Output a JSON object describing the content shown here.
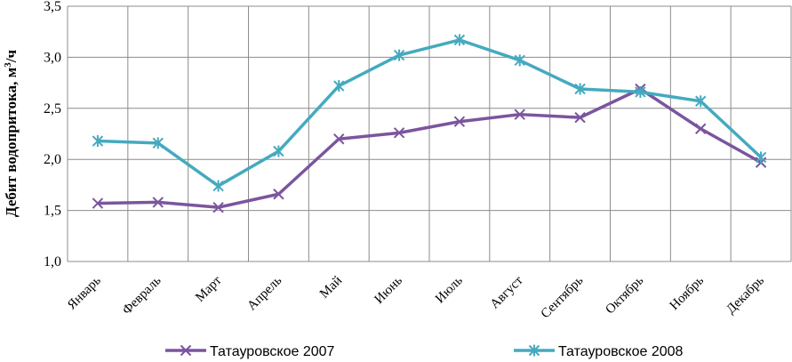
{
  "chart_data": {
    "type": "line",
    "ylabel_main": "Дебит водопритока, м",
    "ylabel_sup": "3",
    "ylabel_tail": "/ч",
    "ylim": [
      1.0,
      3.5
    ],
    "yticks": [
      "1,0",
      "1,5",
      "2,0",
      "2,5",
      "3,0",
      "3,5"
    ],
    "categories": [
      "Январь",
      "Февраль",
      "Март",
      "Апрель",
      "Май",
      "Июнь",
      "Июль",
      "Август",
      "Сентябрь",
      "Октябрь",
      "Ноябрь",
      "Декабрь"
    ],
    "grid": true,
    "legend_position": "bottom",
    "series": [
      {
        "name": "Татауровское 2007",
        "color": "#7B559E",
        "marker": "x",
        "values": [
          1.57,
          1.58,
          1.53,
          1.66,
          2.2,
          2.26,
          2.37,
          2.44,
          2.41,
          2.69,
          2.3,
          1.97
        ]
      },
      {
        "name": "Татауровское 2008",
        "color": "#44AABF",
        "marker": "asterisk",
        "values": [
          2.18,
          2.16,
          1.74,
          2.08,
          2.72,
          3.02,
          3.17,
          2.97,
          2.69,
          2.66,
          2.57,
          2.02
        ]
      }
    ]
  }
}
